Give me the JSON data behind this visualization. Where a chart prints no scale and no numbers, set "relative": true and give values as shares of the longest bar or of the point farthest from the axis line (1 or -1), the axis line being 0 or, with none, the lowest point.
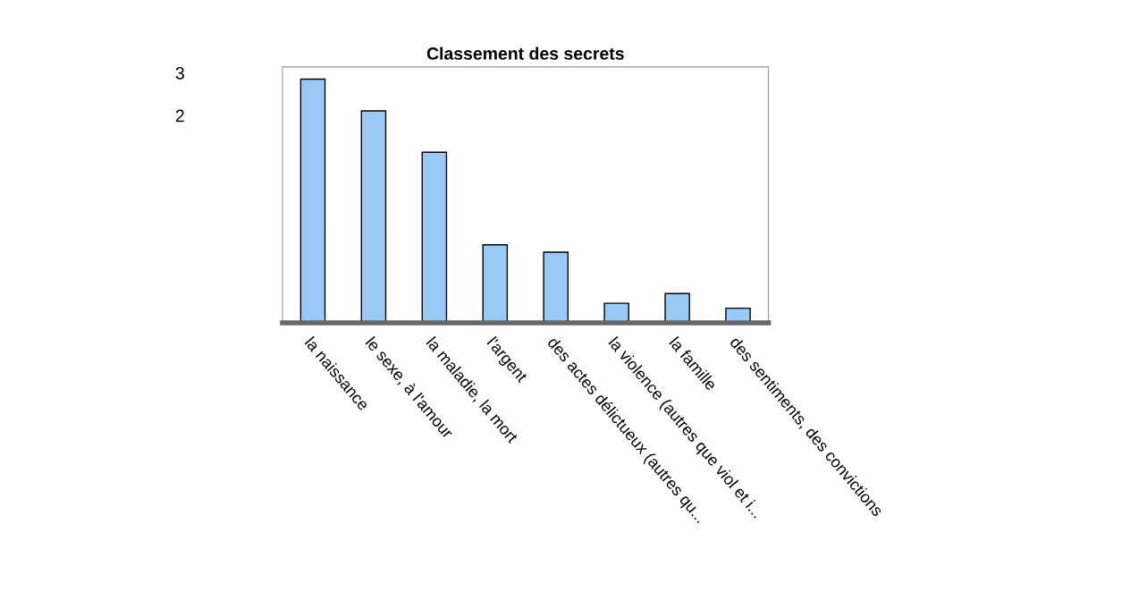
{
  "chart_data": {
    "type": "bar",
    "title": "Classement des secrets",
    "categories": [
      "la naissance",
      "le sexe, à l'amour",
      "la maladie, la mort",
      "l'argent",
      "des actes délictueux (autres qu...",
      "la violence (autres que viol et i...",
      "la famille",
      "des sentiments, des convictions"
    ],
    "values": [
      1,
      0.87,
      0.7,
      0.32,
      0.29,
      0.08,
      0.12,
      0.06
    ],
    "color": "#99c9f5",
    "relative": true,
    "annotations": [
      "3",
      "2"
    ]
  }
}
